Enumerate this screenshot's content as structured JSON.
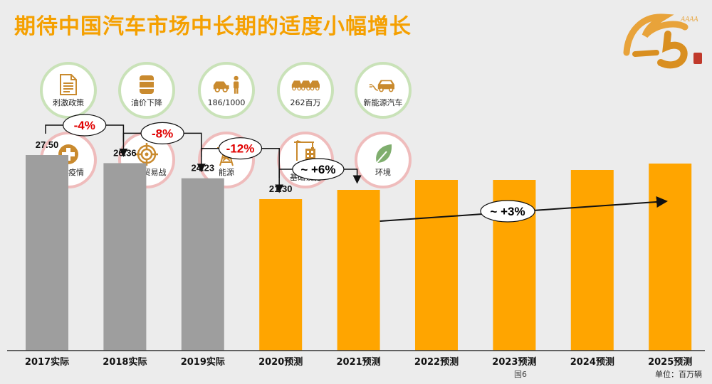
{
  "title": "期待中国汽车市场中长期的适度小幅增长",
  "logo": {
    "text": "25",
    "icon": "anniversary-25-logo"
  },
  "icons": [
    {
      "label": "刺激政策",
      "icon": "document-icon",
      "group": "green"
    },
    {
      "label": "油价下降",
      "icon": "oil-barrel-icon",
      "group": "green"
    },
    {
      "label": "186/1000",
      "icon": "car-person-icon",
      "group": "green"
    },
    {
      "label": "262百万",
      "icon": "cars-icon",
      "group": "green"
    },
    {
      "label": "新能源汽车",
      "icon": "ev-car-icon",
      "group": "green"
    },
    {
      "label": "新冠疫情",
      "icon": "medical-cross-icon",
      "group": "red"
    },
    {
      "label": "中美贸易战",
      "icon": "target-icon",
      "group": "red"
    },
    {
      "label": "能源",
      "icon": "power-tower-icon",
      "group": "red"
    },
    {
      "label": "有限的\n基础设施",
      "icon": "crane-building-icon",
      "group": "red"
    },
    {
      "label": "环境",
      "icon": "leaf-icon",
      "group": "red"
    }
  ],
  "colors": {
    "title": "#f5a000",
    "actual": "#9e9e9e",
    "forecast": "#ffa500",
    "negative_change": "#e00000",
    "positive_change": "#000000",
    "green_ring": "#c9e2b8",
    "red_ring": "#efbcbc",
    "icon": "#c98a2e"
  },
  "chart_data": {
    "type": "bar",
    "categories": [
      "2017实际",
      "2018实际",
      "2019实际",
      "2020预测",
      "2021预测",
      "2022预测",
      "2023预测",
      "2024预测",
      "2025预测"
    ],
    "values": [
      27.5,
      26.36,
      24.23,
      21.3,
      22.6,
      24.0,
      24.0,
      25.4,
      26.3
    ],
    "value_labels": [
      "27.50",
      "26.36",
      "24.23",
      "21.30",
      "",
      "",
      "",
      "",
      ""
    ],
    "kinds": [
      "actual",
      "actual",
      "actual",
      "forecast",
      "forecast",
      "forecast",
      "forecast",
      "forecast",
      "forecast"
    ],
    "ylim": [
      0,
      30
    ],
    "annotations": [
      {
        "text": "-4%",
        "from": 0,
        "to": 1
      },
      {
        "text": "-8%",
        "from": 1,
        "to": 2
      },
      {
        "text": "-12%",
        "from": 2,
        "to": 3
      },
      {
        "text": "~ +6%",
        "from": 3,
        "to": 4
      },
      {
        "text": "~ +3%",
        "from": 4,
        "to": 8
      }
    ]
  },
  "footer": {
    "unit": "单位：百万辆",
    "page": "国6"
  }
}
